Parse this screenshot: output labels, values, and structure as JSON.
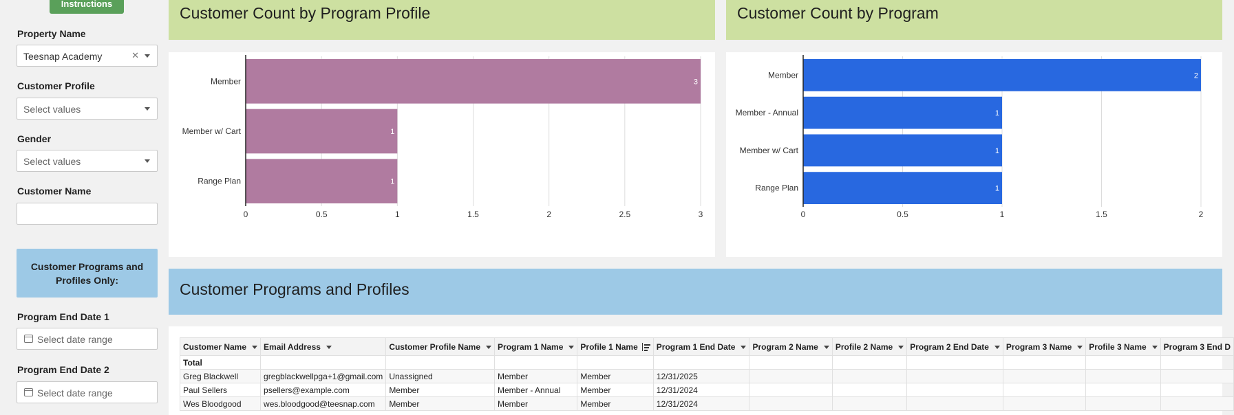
{
  "sidebar": {
    "instructions_label": "Instructions",
    "property_name_label": "Property Name",
    "property_name_value": "Teesnap Academy",
    "customer_profile_label": "Customer Profile",
    "customer_profile_placeholder": "Select values",
    "gender_label": "Gender",
    "gender_placeholder": "Select values",
    "customer_name_label": "Customer Name",
    "customer_name_value": "",
    "section_label": "Customer Programs and Profiles Only:",
    "program_end_date_1_label": "Program End Date 1",
    "program_end_date_1_placeholder": "Select date range",
    "program_end_date_2_label": "Program End Date 2",
    "program_end_date_2_placeholder": "Select date range"
  },
  "panels": {
    "profile_title": "Customer Count by Program Profile",
    "program_title": "Customer Count by Program",
    "table_title": "Customer Programs and Profiles"
  },
  "colors": {
    "profile_bar": "#b07ba0",
    "program_bar": "#2868e0",
    "header_green": "#cde0a1",
    "header_blue": "#9dc9e6"
  },
  "chart_data": [
    {
      "type": "bar",
      "orientation": "horizontal",
      "title": "Customer Count by Program Profile",
      "categories": [
        "Member",
        "Member w/ Cart",
        "Range Plan"
      ],
      "values": [
        3,
        1,
        1
      ],
      "xlim": [
        0,
        3
      ],
      "xticks": [
        "0",
        "0.5",
        "1",
        "1.5",
        "2",
        "2.5",
        "3"
      ],
      "grid": true
    },
    {
      "type": "bar",
      "orientation": "horizontal",
      "title": "Customer Count by Program",
      "categories": [
        "Member",
        "Member - Annual",
        "Member w/ Cart",
        "Range Plan"
      ],
      "values": [
        2,
        1,
        1,
        1
      ],
      "xlim": [
        0,
        2
      ],
      "xticks": [
        "0",
        "0.5",
        "1",
        "1.5",
        "2"
      ],
      "grid": true
    }
  ],
  "table": {
    "columns": [
      "Customer Name",
      "Email Address",
      "Customer Profile Name",
      "Program 1 Name",
      "Profile 1 Name",
      "Program 1 End Date",
      "Program 2 Name",
      "Profile 2 Name",
      "Program 2 End Date",
      "Program 3 Name",
      "Profile 3 Name",
      "Program 3 End D"
    ],
    "total_label": "Total",
    "rows": [
      [
        "Greg Blackwell",
        "gregblackwellpga+1@gmail.com",
        "Unassigned",
        "Member",
        "Member",
        "12/31/2025",
        "",
        "",
        "",
        "",
        "",
        ""
      ],
      [
        "Paul Sellers",
        "psellers@example.com",
        "Member",
        "Member - Annual",
        "Member",
        "12/31/2024",
        "",
        "",
        "",
        "",
        "",
        ""
      ],
      [
        "Wes Bloodgood",
        "wes.bloodgood@teesnap.com",
        "Member",
        "Member",
        "Member",
        "12/31/2024",
        "",
        "",
        "",
        "",
        "",
        ""
      ]
    ]
  }
}
